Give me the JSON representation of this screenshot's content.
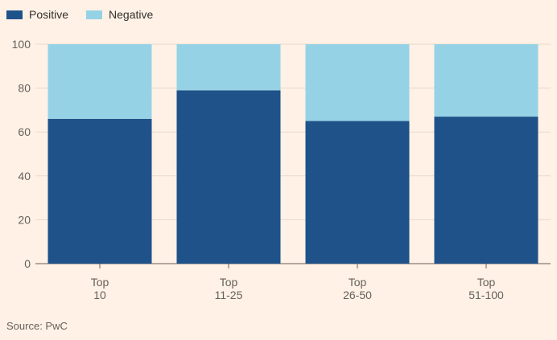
{
  "chart_data": {
    "type": "bar",
    "stacked": true,
    "title": "",
    "xlabel": "",
    "ylabel": "",
    "categories": [
      [
        "Top",
        "10"
      ],
      [
        "Top",
        "11-25"
      ],
      [
        "Top",
        "26-50"
      ],
      [
        "Top",
        "51-100"
      ]
    ],
    "series": [
      {
        "name": "Positive",
        "color": "#1f5289",
        "values": [
          66,
          79,
          65,
          67
        ]
      },
      {
        "name": "Negative",
        "color": "#96d2e6",
        "values": [
          34,
          21,
          35,
          33
        ]
      }
    ],
    "ylim": [
      0,
      100
    ],
    "yticks": [
      0,
      20,
      40,
      60,
      80,
      100
    ],
    "grid": true,
    "legend": "top-left"
  },
  "legend": {
    "positive_label": "Positive",
    "negative_label": "Negative",
    "positive_color": "#1f5289",
    "negative_color": "#96d2e6"
  },
  "source": "Source: PwC"
}
